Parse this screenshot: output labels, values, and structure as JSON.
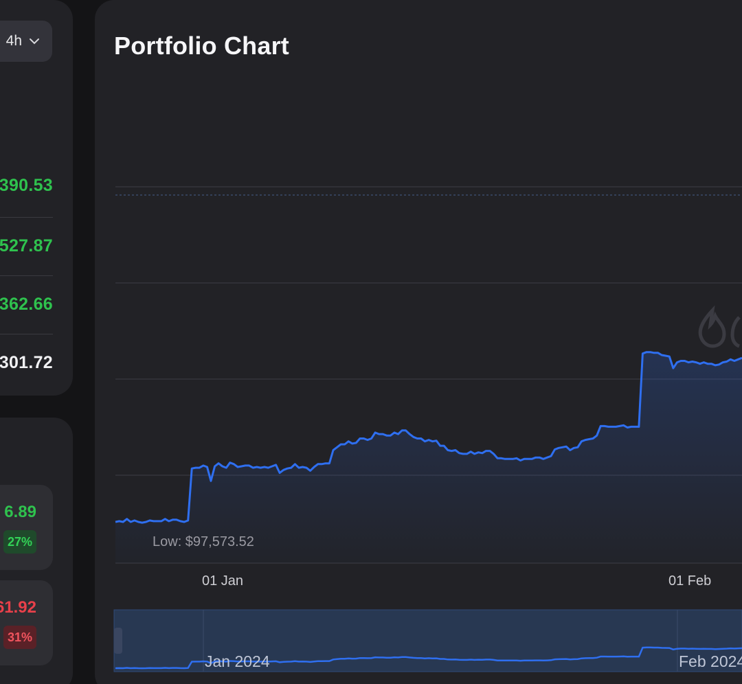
{
  "left_panel": {
    "period_select": {
      "value": "4h",
      "icon": "chevron-down-icon"
    },
    "stats": [
      {
        "value": "390.53",
        "color": "#2fc24e"
      },
      {
        "value": "527.87",
        "color": "#2fc24e"
      },
      {
        "value": "362.66",
        "color": "#2fc24e"
      },
      {
        "value": "301.72",
        "color": "#f1f1f3"
      }
    ],
    "changes": [
      {
        "value": "6.89",
        "percent": "27%",
        "direction": "up"
      },
      {
        "value": "61.92",
        "percent": "31%",
        "direction": "down"
      }
    ]
  },
  "main": {
    "title": "Portfolio Chart",
    "watermark_icon": "flame-logo-icon"
  },
  "chart_data": {
    "type": "area",
    "title": "",
    "x_ticks": [
      "01 Jan",
      "01 Feb"
    ],
    "low_label": "Low: $97,573.52",
    "line_color": "#2f6ff0",
    "grid": true,
    "navigator": {
      "labels": [
        "Jan 2024",
        "Feb 2024"
      ]
    },
    "series": [
      {
        "values": [
          0,
          1,
          0,
          4,
          0,
          2,
          0,
          -1,
          0,
          2,
          1,
          1,
          1,
          4,
          1,
          3,
          3,
          1,
          0,
          2,
          73,
          74,
          74,
          77,
          75,
          56,
          76,
          80,
          76,
          74,
          81,
          79,
          75,
          76,
          77,
          77,
          74,
          75,
          74,
          75,
          74,
          76,
          78,
          67,
          71,
          73,
          74,
          79,
          74,
          75,
          74,
          70,
          75,
          79,
          79,
          80,
          80,
          98,
          102,
          106,
          106,
          110,
          107,
          108,
          114,
          114,
          112,
          114,
          122,
          120,
          120,
          118,
          118,
          122,
          120,
          125,
          125,
          120,
          116,
          114,
          114,
          110,
          112,
          110,
          111,
          104,
          104,
          98,
          97,
          98,
          94,
          93,
          93,
          96,
          93,
          95,
          94,
          97,
          97,
          93,
          87,
          87,
          86,
          86,
          86,
          87,
          84,
          86,
          86,
          86,
          88,
          88,
          86,
          88,
          90,
          99,
          101,
          102,
          103,
          98,
          101,
          102,
          110,
          112,
          113,
          114,
          118,
          131,
          131,
          130,
          130,
          130,
          131,
          132,
          129,
          130,
          130,
          130,
          230,
          232,
          232,
          231,
          231,
          228,
          227,
          226,
          210,
          218,
          220,
          220,
          218,
          219,
          218,
          216,
          218,
          216,
          216,
          214,
          215,
          218,
          219,
          222,
          220,
          222,
          224
        ]
      }
    ]
  }
}
